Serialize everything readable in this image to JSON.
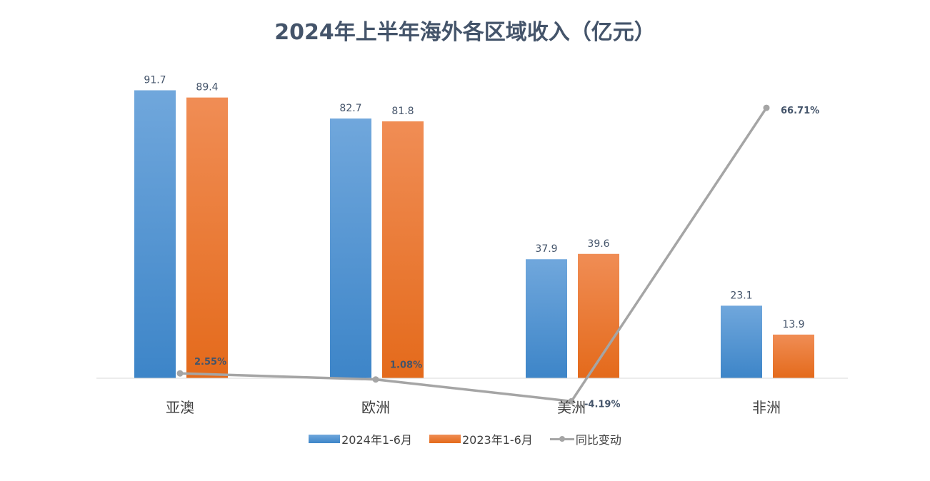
{
  "chart_data": {
    "type": "bar",
    "title": "2024年上半年海外各区域收入（亿元）",
    "categories": [
      "亚澳",
      "欧洲",
      "美洲",
      "非洲"
    ],
    "series": [
      {
        "name": "2024年1-6月",
        "type": "bar",
        "values": [
          91.7,
          82.7,
          37.9,
          23.1
        ],
        "labels": [
          "91.7",
          "82.7",
          "37.9",
          "23.1"
        ],
        "color": "#5b9bd5"
      },
      {
        "name": "2023年1-6月",
        "type": "bar",
        "values": [
          89.4,
          81.8,
          39.6,
          13.9
        ],
        "labels": [
          "89.4",
          "81.8",
          "39.6",
          "13.9"
        ],
        "color": "#ed7d31"
      },
      {
        "name": "同比变动",
        "type": "line",
        "values": [
          2.55,
          1.08,
          -4.19,
          66.71
        ],
        "labels": [
          "2.55%",
          "1.08%",
          "-4.19%",
          "66.71%"
        ],
        "color": "#a5a5a5",
        "unit": "%"
      }
    ],
    "ylim": [
      0,
      100
    ],
    "secondary_ylim": [
      -10,
      100
    ],
    "grid": false,
    "legend": "bottom"
  }
}
